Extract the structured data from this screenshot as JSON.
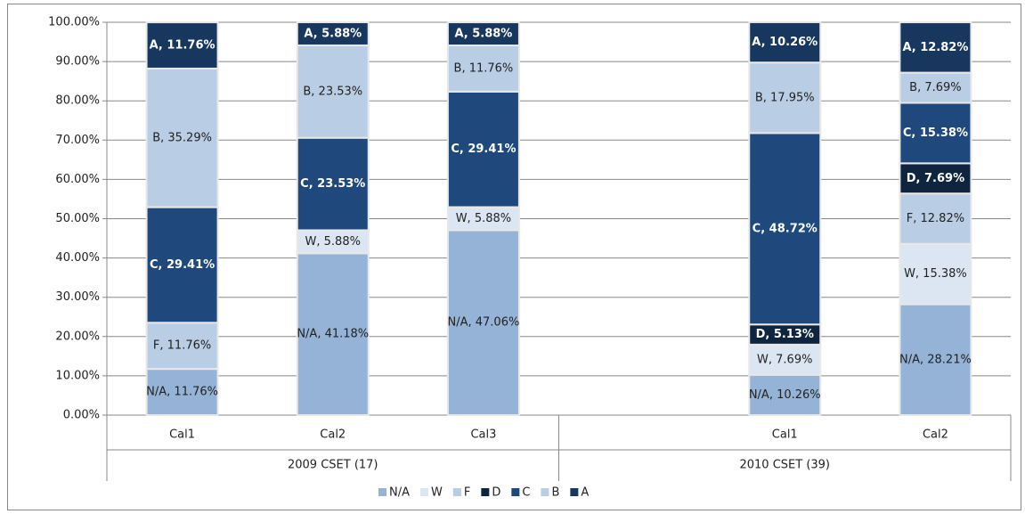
{
  "chart_data": {
    "type": "stacked-bar",
    "categories": [
      "Cal1",
      "Cal2",
      "Cal3",
      null,
      "Cal1",
      "Cal2"
    ],
    "groups": [
      "2009 CSET (17)",
      "2010 CSET (39)"
    ],
    "ylim": [
      0,
      100
    ],
    "yticks": [
      {
        "value": 0,
        "label": "0.00%"
      },
      {
        "value": 10,
        "label": "10.00%"
      },
      {
        "value": 20,
        "label": "20.00%"
      },
      {
        "value": 30,
        "label": "30.00%"
      },
      {
        "value": 40,
        "label": "40.00%"
      },
      {
        "value": 50,
        "label": "50.00%"
      },
      {
        "value": 60,
        "label": "60.00%"
      },
      {
        "value": 70,
        "label": "70.00%"
      },
      {
        "value": 80,
        "label": "80.00%"
      },
      {
        "value": 90,
        "label": "90.00%"
      },
      {
        "value": 100,
        "label": "100.00%"
      }
    ],
    "grid": true,
    "legend": "bottom",
    "series": [
      {
        "name": "N/A",
        "color": "#95b3d7",
        "values": [
          11.76,
          41.18,
          47.06,
          null,
          10.26,
          28.21
        ],
        "value_labels": [
          "N/A, 11.76%",
          "N/A, 41.18%",
          "N/A, 47.06%",
          null,
          "N/A, 10.26%",
          "N/A, 28.21%"
        ]
      },
      {
        "name": "W",
        "color": "#dce6f2",
        "values": [
          null,
          5.88,
          5.88,
          null,
          7.69,
          15.38
        ],
        "value_labels": [
          null,
          "W, 5.88%",
          "W, 5.88%",
          null,
          "W, 7.69%",
          "W, 15.38%"
        ]
      },
      {
        "name": "F",
        "color": "#b9cde5",
        "values": [
          11.76,
          null,
          null,
          null,
          null,
          12.82
        ],
        "value_labels": [
          "F, 11.76%",
          null,
          null,
          null,
          null,
          "F, 12.82%"
        ]
      },
      {
        "name": "D",
        "color": "#0f243e",
        "values": [
          null,
          null,
          null,
          null,
          5.13,
          7.69
        ],
        "value_labels": [
          null,
          null,
          null,
          null,
          "D, 5.13%",
          "D, 7.69%"
        ]
      },
      {
        "name": "C",
        "color": "#1f497d",
        "values": [
          29.41,
          23.53,
          29.41,
          null,
          48.72,
          15.38
        ],
        "value_labels": [
          "C, 29.41%",
          "C, 23.53%",
          "C, 29.41%",
          null,
          "C, 48.72%",
          "C, 15.38%"
        ]
      },
      {
        "name": "B",
        "color": "#b9cde5",
        "values": [
          35.29,
          23.53,
          11.76,
          null,
          17.95,
          7.69
        ],
        "value_labels": [
          "B, 35.29%",
          "B, 23.53%",
          "B, 11.76%",
          null,
          "B, 17.95%",
          "B, 7.69%"
        ]
      },
      {
        "name": "A",
        "color": "#17375e",
        "values": [
          11.76,
          5.88,
          5.88,
          null,
          10.26,
          12.82
        ],
        "value_labels": [
          "A, 11.76%",
          "A, 5.88%",
          "A, 5.88%",
          null,
          "A, 10.26%",
          "A, 12.82%"
        ]
      }
    ]
  }
}
